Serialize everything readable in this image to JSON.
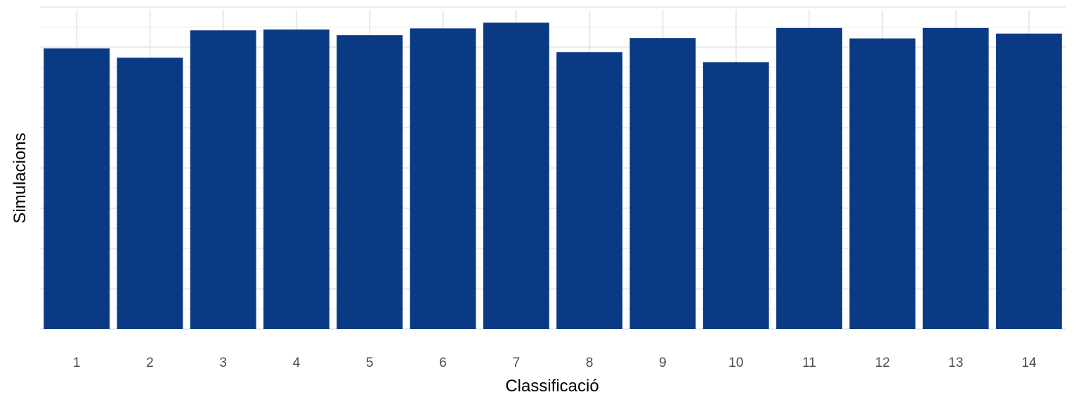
{
  "chart_data": {
    "type": "bar",
    "categories": [
      "1",
      "2",
      "3",
      "4",
      "5",
      "6",
      "7",
      "8",
      "9",
      "10",
      "11",
      "12",
      "13",
      "14"
    ],
    "values": [
      697,
      674,
      742,
      744,
      730,
      747,
      761,
      688,
      723,
      663,
      748,
      722,
      748,
      734
    ],
    "xlabel": "Classificació",
    "ylabel": "Simulacions",
    "ylim": [
      0,
      800
    ],
    "y_tick_labels_shown": false,
    "grid": true,
    "bar_color": "#0A3A84",
    "grid_color": "#EBEBEB",
    "background": "#FFFFFF"
  }
}
